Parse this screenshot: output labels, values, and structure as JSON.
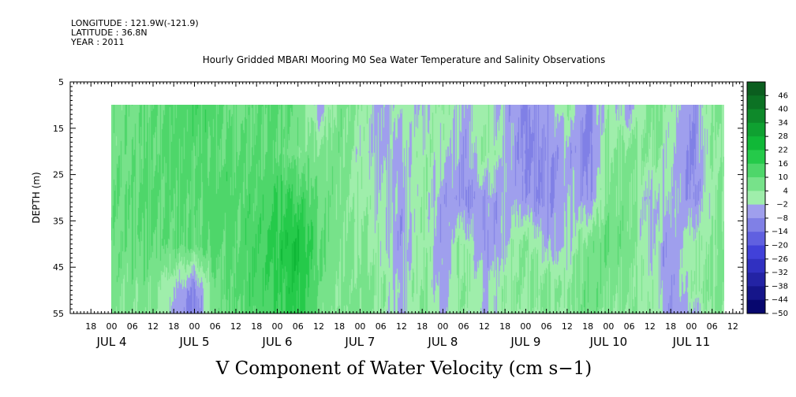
{
  "meta": {
    "longitude": "LONGITUDE : 121.9W(-121.9)",
    "latitude": "LATITUDE : 36.8N",
    "year": "YEAR : 2011"
  },
  "colors": {
    "positive_dark": "#0b5e1f",
    "positive_mid": "#11c43a",
    "positive_light": "#a6f0b0",
    "negative_light": "#b9b9f2",
    "negative_mid": "#3c3cd8",
    "negative_dark": "#000060"
  },
  "chart_data": {
    "type": "heatmap",
    "title": "Hourly Gridded MBARI Mooring M0 Sea Water Temperature and Salinity Observations",
    "xlabel": "",
    "ylabel": "DEPTH (m)",
    "bottom_label": "V Component of Water Velocity (cm s−1)",
    "y_ticks": [
      5,
      15,
      25,
      35,
      45,
      55
    ],
    "ylim": [
      55,
      5
    ],
    "data_depth_range": [
      10,
      55
    ],
    "x_hour_ticks": [
      "18",
      "00",
      "06",
      "12",
      "18",
      "00",
      "06",
      "12",
      "18",
      "00",
      "06",
      "12",
      "18",
      "00",
      "06",
      "12",
      "18",
      "00",
      "06",
      "12",
      "18",
      "00",
      "06",
      "12",
      "18",
      "00",
      "06",
      "12",
      "18",
      "00",
      "06",
      "12"
    ],
    "x_day_labels": [
      "JUL  4",
      "JUL  5",
      "JUL  6",
      "JUL  7",
      "JUL  8",
      "JUL  9",
      "JUL 10",
      "JUL 11"
    ],
    "colorbar_levels": [
      "46",
      "40",
      "34",
      "28",
      "22",
      "16",
      "10",
      "4",
      "−2",
      "−8",
      "−14",
      "−20",
      "−26",
      "−32",
      "−38",
      "−44",
      "−50"
    ],
    "colorbar_range": [
      -50,
      52
    ],
    "grid": false,
    "time_days": [
      4.0,
      4.5,
      5.0,
      5.25,
      5.5,
      5.75,
      6.0,
      6.25,
      6.5,
      6.75,
      7.0,
      7.25,
      7.5,
      7.75,
      8.0,
      8.25,
      8.5,
      8.75,
      9.0,
      9.25,
      9.5,
      9.75,
      10.0,
      10.25,
      10.5,
      10.75,
      11.0,
      11.25,
      11.4
    ],
    "depth_rows": [
      10,
      20,
      30,
      40,
      50,
      55
    ],
    "values": [
      [
        6,
        10,
        14,
        12,
        8,
        10,
        12,
        8,
        -4,
        6,
        4,
        -6,
        2,
        -2,
        4,
        -4,
        2,
        -4,
        -8,
        -6,
        4,
        -10,
        2,
        -6,
        6,
        2,
        -8,
        6,
        4
      ],
      [
        7,
        11,
        12,
        10,
        12,
        10,
        10,
        6,
        6,
        8,
        0,
        -4,
        -2,
        2,
        0,
        -6,
        4,
        -2,
        -10,
        -8,
        -4,
        -12,
        4,
        6,
        4,
        0,
        -10,
        4,
        2
      ],
      [
        8,
        12,
        10,
        14,
        12,
        12,
        16,
        14,
        10,
        6,
        2,
        0,
        -4,
        4,
        -6,
        -8,
        -6,
        -4,
        -6,
        -10,
        -2,
        -8,
        6,
        6,
        -4,
        0,
        -8,
        2,
        4
      ],
      [
        8,
        10,
        10,
        12,
        12,
        14,
        18,
        22,
        12,
        6,
        4,
        0,
        -6,
        4,
        -6,
        4,
        -8,
        -2,
        6,
        -4,
        -2,
        6,
        10,
        6,
        -2,
        -6,
        2,
        4,
        6
      ],
      [
        6,
        6,
        -10,
        8,
        12,
        14,
        16,
        20,
        10,
        4,
        6,
        4,
        -2,
        6,
        -6,
        6,
        -2,
        4,
        4,
        6,
        4,
        8,
        6,
        4,
        2,
        -6,
        2,
        6,
        6
      ],
      [
        4,
        6,
        -12,
        8,
        10,
        12,
        14,
        18,
        8,
        4,
        8,
        2,
        -4,
        6,
        -4,
        4,
        -4,
        2,
        2,
        4,
        2,
        8,
        4,
        4,
        2,
        -6,
        -4,
        4,
        4
      ]
    ]
  }
}
